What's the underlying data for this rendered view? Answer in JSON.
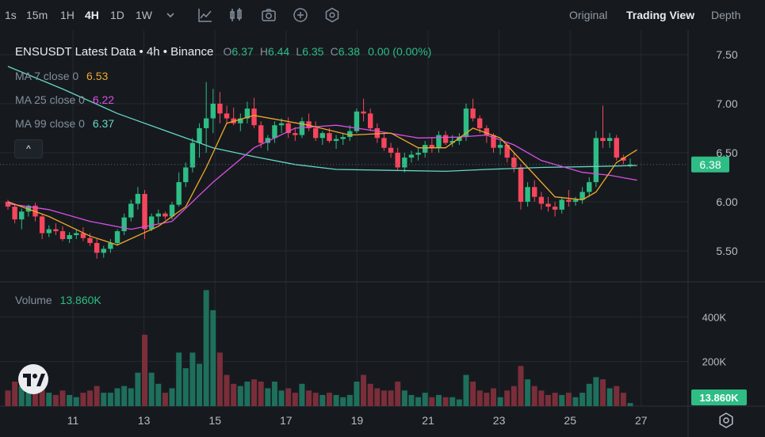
{
  "toolbar": {
    "timeframes": [
      "1s",
      "15m",
      "1H",
      "4H",
      "1D",
      "1W"
    ],
    "active_timeframe": "4H",
    "views": [
      "Original",
      "Trading View",
      "Depth"
    ],
    "active_view": "Trading View"
  },
  "legend": {
    "title": "ENSUSDT Latest Data • 4h • Binance",
    "o_label": "O",
    "o_value": "6.37",
    "h_label": "H",
    "h_value": "6.44",
    "l_label": "L",
    "l_value": "6.35",
    "c_label": "C",
    "c_value": "6.38",
    "change": "0.00 (0.00%)"
  },
  "ma": [
    {
      "label": "MA 7 close 0",
      "value": "6.53",
      "color": "#f0a72e"
    },
    {
      "label": "MA 25 close 0",
      "value": "6.22",
      "color": "#d94fe6"
    },
    {
      "label": "MA 99 close 0",
      "value": "6.37",
      "color": "#66d6c6"
    }
  ],
  "collapse_label": "^",
  "volume": {
    "label": "Volume",
    "value": "13.860K"
  },
  "colors": {
    "up": "#2ebd85",
    "down": "#f6465d",
    "vol_up": "#1e6f5c",
    "vol_down": "#7a2e3a",
    "grid": "#242a31",
    "bg": "#161a1e",
    "axis_text": "#b7bdc6",
    "price_tag": "#2ebd85"
  },
  "chart_data": {
    "type": "candlestick",
    "pair": "ENSUSDT",
    "interval": "4h",
    "exchange": "Binance",
    "price_ticks": [
      "7.50",
      "7.00",
      "6.50",
      "6.00",
      "5.50"
    ],
    "volume_ticks": [
      "400K",
      "200K"
    ],
    "x_ticks": [
      "11",
      "13",
      "15",
      "17",
      "19",
      "21",
      "23",
      "25",
      "27"
    ],
    "last_price": "6.38",
    "last_volume": "13.860K",
    "price_range": [
      5.2,
      7.75
    ],
    "volume_range": [
      0,
      550000
    ],
    "candles": [
      [
        6.0,
        6.02,
        5.92,
        5.95,
        70000
      ],
      [
        5.95,
        5.98,
        5.78,
        5.82,
        110000
      ],
      [
        5.82,
        5.93,
        5.72,
        5.9,
        90000
      ],
      [
        5.9,
        5.97,
        5.85,
        5.96,
        60000
      ],
      [
        5.96,
        5.99,
        5.8,
        5.85,
        70000
      ],
      [
        5.85,
        5.88,
        5.62,
        5.68,
        120000
      ],
      [
        5.68,
        5.76,
        5.64,
        5.72,
        60000
      ],
      [
        5.72,
        5.78,
        5.66,
        5.7,
        50000
      ],
      [
        5.7,
        5.75,
        5.6,
        5.62,
        70000
      ],
      [
        5.62,
        5.69,
        5.58,
        5.66,
        50000
      ],
      [
        5.66,
        5.72,
        5.62,
        5.68,
        40000
      ],
      [
        5.68,
        5.74,
        5.6,
        5.63,
        60000
      ],
      [
        5.63,
        5.68,
        5.55,
        5.58,
        70000
      ],
      [
        5.58,
        5.62,
        5.42,
        5.48,
        90000
      ],
      [
        5.48,
        5.55,
        5.43,
        5.52,
        60000
      ],
      [
        5.52,
        5.62,
        5.48,
        5.58,
        60000
      ],
      [
        5.58,
        5.72,
        5.55,
        5.7,
        80000
      ],
      [
        5.7,
        5.88,
        5.66,
        5.84,
        90000
      ],
      [
        5.84,
        6.02,
        5.8,
        5.98,
        80000
      ],
      [
        5.98,
        6.15,
        5.92,
        6.08,
        150000
      ],
      [
        6.08,
        6.12,
        5.62,
        5.72,
        320000
      ],
      [
        5.72,
        5.88,
        5.7,
        5.85,
        150000
      ],
      [
        5.85,
        5.92,
        5.78,
        5.88,
        100000
      ],
      [
        5.88,
        5.9,
        5.82,
        5.85,
        60000
      ],
      [
        5.85,
        6.0,
        5.82,
        5.97,
        80000
      ],
      [
        5.97,
        6.3,
        5.95,
        6.2,
        240000
      ],
      [
        6.2,
        6.4,
        6.15,
        6.35,
        170000
      ],
      [
        6.35,
        6.65,
        6.3,
        6.6,
        240000
      ],
      [
        6.6,
        6.8,
        6.45,
        6.75,
        190000
      ],
      [
        6.75,
        7.22,
        6.5,
        6.85,
        520000
      ],
      [
        6.85,
        7.15,
        6.7,
        7.0,
        430000
      ],
      [
        7.0,
        7.12,
        6.8,
        6.9,
        240000
      ],
      [
        6.9,
        6.98,
        6.8,
        6.85,
        140000
      ],
      [
        6.85,
        6.96,
        6.78,
        6.8,
        100000
      ],
      [
        6.8,
        6.9,
        6.72,
        6.85,
        90000
      ],
      [
        6.85,
        7.02,
        6.8,
        6.95,
        110000
      ],
      [
        6.95,
        7.06,
        6.75,
        6.78,
        120000
      ],
      [
        6.78,
        6.82,
        6.55,
        6.6,
        110000
      ],
      [
        6.6,
        6.68,
        6.52,
        6.65,
        80000
      ],
      [
        6.65,
        6.82,
        6.6,
        6.78,
        110000
      ],
      [
        6.78,
        6.85,
        6.7,
        6.8,
        70000
      ],
      [
        6.8,
        6.86,
        6.65,
        6.7,
        80000
      ],
      [
        6.7,
        6.76,
        6.62,
        6.68,
        60000
      ],
      [
        6.68,
        6.86,
        6.65,
        6.82,
        100000
      ],
      [
        6.82,
        6.9,
        6.72,
        6.75,
        70000
      ],
      [
        6.75,
        6.82,
        6.62,
        6.65,
        60000
      ],
      [
        6.65,
        6.72,
        6.58,
        6.7,
        50000
      ],
      [
        6.7,
        6.75,
        6.6,
        6.62,
        60000
      ],
      [
        6.62,
        6.68,
        6.54,
        6.64,
        50000
      ],
      [
        6.64,
        6.7,
        6.58,
        6.66,
        40000
      ],
      [
        6.66,
        6.78,
        6.62,
        6.72,
        50000
      ],
      [
        6.72,
        6.95,
        6.7,
        6.92,
        110000
      ],
      [
        6.92,
        7.05,
        6.82,
        6.9,
        140000
      ],
      [
        6.9,
        6.95,
        6.72,
        6.75,
        100000
      ],
      [
        6.75,
        6.8,
        6.6,
        6.65,
        80000
      ],
      [
        6.65,
        6.7,
        6.52,
        6.55,
        70000
      ],
      [
        6.55,
        6.6,
        6.45,
        6.5,
        70000
      ],
      [
        6.5,
        6.55,
        6.32,
        6.35,
        110000
      ],
      [
        6.35,
        6.5,
        6.3,
        6.45,
        70000
      ],
      [
        6.45,
        6.52,
        6.4,
        6.48,
        50000
      ],
      [
        6.48,
        6.55,
        6.42,
        6.5,
        40000
      ],
      [
        6.5,
        6.62,
        6.45,
        6.58,
        60000
      ],
      [
        6.58,
        6.65,
        6.5,
        6.55,
        40000
      ],
      [
        6.55,
        6.72,
        6.5,
        6.68,
        50000
      ],
      [
        6.68,
        6.72,
        6.58,
        6.6,
        40000
      ],
      [
        6.6,
        6.68,
        6.56,
        6.62,
        40000
      ],
      [
        6.62,
        6.7,
        6.58,
        6.66,
        30000
      ],
      [
        6.66,
        7.0,
        6.62,
        6.95,
        140000
      ],
      [
        6.95,
        7.05,
        6.82,
        6.85,
        110000
      ],
      [
        6.85,
        6.88,
        6.7,
        6.75,
        70000
      ],
      [
        6.75,
        6.78,
        6.6,
        6.68,
        60000
      ],
      [
        6.68,
        6.7,
        6.5,
        6.55,
        80000
      ],
      [
        6.55,
        6.62,
        6.48,
        6.58,
        40000
      ],
      [
        6.58,
        6.6,
        6.4,
        6.45,
        70000
      ],
      [
        6.45,
        6.5,
        6.3,
        6.35,
        90000
      ],
      [
        6.35,
        6.38,
        5.92,
        6.0,
        180000
      ],
      [
        6.0,
        6.2,
        5.95,
        6.15,
        120000
      ],
      [
        6.15,
        6.22,
        6.0,
        6.05,
        90000
      ],
      [
        6.05,
        6.1,
        5.92,
        5.98,
        70000
      ],
      [
        5.98,
        6.05,
        5.9,
        5.95,
        50000
      ],
      [
        5.95,
        6.0,
        5.85,
        5.92,
        60000
      ],
      [
        5.92,
        6.05,
        5.88,
        6.02,
        50000
      ],
      [
        6.02,
        6.12,
        5.95,
        6.0,
        60000
      ],
      [
        6.0,
        6.05,
        5.96,
        6.02,
        40000
      ],
      [
        6.02,
        6.15,
        5.98,
        6.1,
        60000
      ],
      [
        6.1,
        6.25,
        6.05,
        6.2,
        100000
      ],
      [
        6.2,
        6.72,
        6.15,
        6.65,
        130000
      ],
      [
        6.65,
        6.98,
        6.55,
        6.62,
        120000
      ],
      [
        6.62,
        6.7,
        6.55,
        6.65,
        80000
      ],
      [
        6.65,
        6.68,
        6.42,
        6.45,
        90000
      ],
      [
        6.45,
        6.48,
        6.38,
        6.42,
        60000
      ],
      [
        6.37,
        6.44,
        6.35,
        6.38,
        13860
      ]
    ],
    "ma7": [
      [
        0,
        6.0
      ],
      [
        6,
        5.85
      ],
      [
        12,
        5.65
      ],
      [
        16,
        5.56
      ],
      [
        22,
        5.75
      ],
      [
        26,
        5.95
      ],
      [
        29,
        6.35
      ],
      [
        32,
        6.8
      ],
      [
        36,
        6.88
      ],
      [
        44,
        6.78
      ],
      [
        50,
        6.68
      ],
      [
        56,
        6.7
      ],
      [
        60,
        6.55
      ],
      [
        64,
        6.55
      ],
      [
        68,
        6.75
      ],
      [
        72,
        6.65
      ],
      [
        76,
        6.35
      ],
      [
        80,
        6.05
      ],
      [
        84,
        6.02
      ],
      [
        86,
        6.1
      ],
      [
        89,
        6.4
      ],
      [
        92,
        6.53
      ]
    ],
    "ma25": [
      [
        0,
        5.98
      ],
      [
        6,
        5.92
      ],
      [
        12,
        5.8
      ],
      [
        18,
        5.72
      ],
      [
        24,
        5.8
      ],
      [
        30,
        6.2
      ],
      [
        36,
        6.55
      ],
      [
        42,
        6.75
      ],
      [
        48,
        6.78
      ],
      [
        54,
        6.72
      ],
      [
        60,
        6.65
      ],
      [
        66,
        6.66
      ],
      [
        70,
        6.68
      ],
      [
        74,
        6.58
      ],
      [
        78,
        6.42
      ],
      [
        84,
        6.3
      ],
      [
        88,
        6.27
      ],
      [
        92,
        6.22
      ]
    ],
    "ma99": [
      [
        0,
        7.38
      ],
      [
        8,
        7.15
      ],
      [
        16,
        6.9
      ],
      [
        24,
        6.7
      ],
      [
        30,
        6.55
      ],
      [
        36,
        6.46
      ],
      [
        42,
        6.38
      ],
      [
        48,
        6.33
      ],
      [
        56,
        6.32
      ],
      [
        64,
        6.31
      ],
      [
        70,
        6.33
      ],
      [
        78,
        6.35
      ],
      [
        86,
        6.36
      ],
      [
        92,
        6.37
      ]
    ]
  }
}
